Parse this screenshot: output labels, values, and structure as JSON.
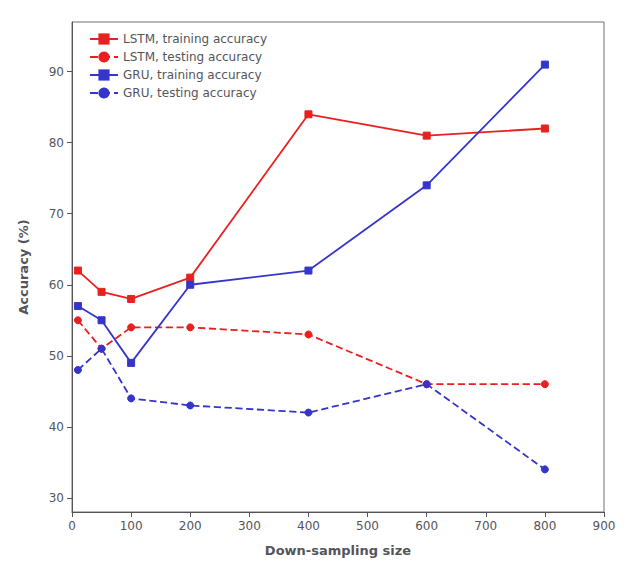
{
  "chart_data": {
    "type": "line",
    "xlabel": "Down-sampling size",
    "ylabel": "Accuracy (%)",
    "x": [
      10,
      50,
      100,
      200,
      400,
      600,
      800
    ],
    "series": [
      {
        "name": "LSTM, training accuracy",
        "color": "#e82020",
        "marker": "square",
        "line_style": "solid",
        "values": [
          62,
          59,
          58,
          61,
          84,
          81,
          82
        ]
      },
      {
        "name": "LSTM, testing accuracy",
        "color": "#e82020",
        "marker": "circle",
        "line_style": "dashed",
        "values": [
          55,
          51,
          54,
          54,
          53,
          46,
          46
        ]
      },
      {
        "name": "GRU, training accuracy",
        "color": "#3535cc",
        "marker": "square",
        "line_style": "solid",
        "values": [
          57,
          55,
          49,
          60,
          62,
          74,
          91
        ]
      },
      {
        "name": "GRU, testing accuracy",
        "color": "#3535cc",
        "marker": "circle",
        "line_style": "dashed",
        "values": [
          48,
          51,
          44,
          43,
          42,
          46,
          34
        ]
      }
    ],
    "xlim": [
      0,
      900
    ],
    "ylim": [
      28,
      97
    ],
    "xticks": [
      0,
      100,
      200,
      300,
      400,
      500,
      600,
      700,
      800,
      900
    ],
    "yticks": [
      30,
      40,
      50,
      60,
      70,
      80,
      90
    ],
    "grid": false,
    "legend": "upper left"
  }
}
